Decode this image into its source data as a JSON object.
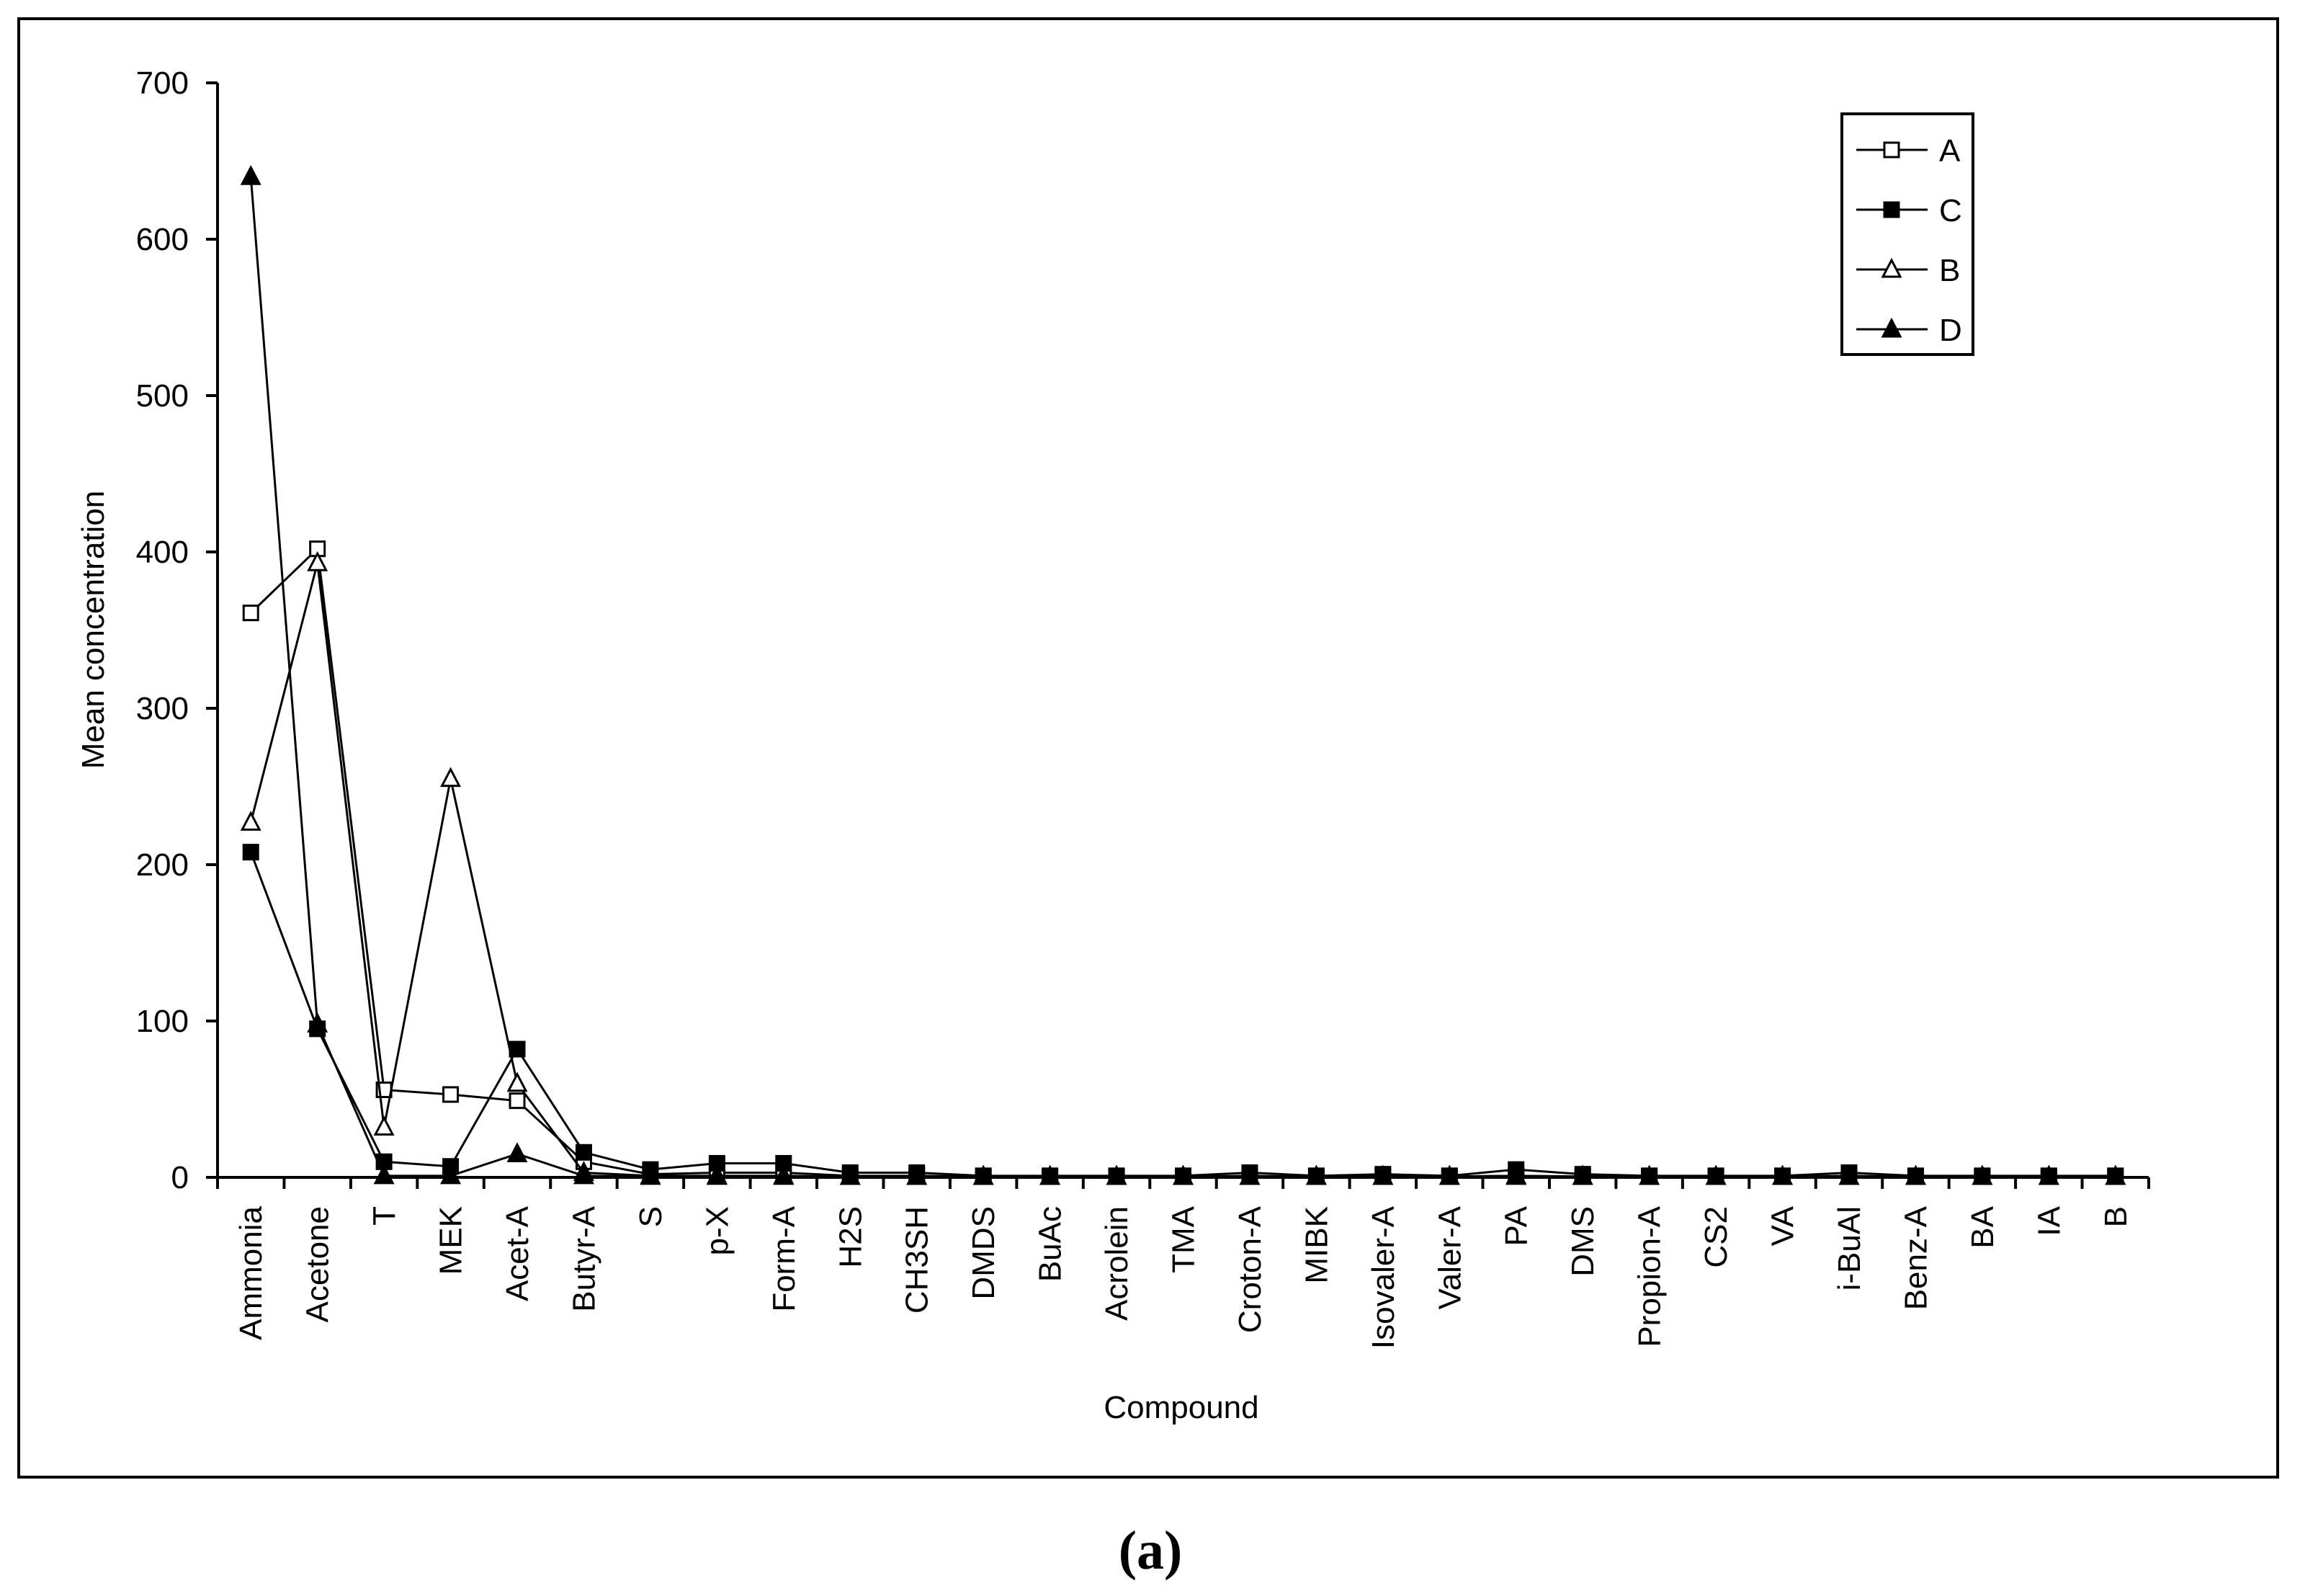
{
  "panel_label": "(a)",
  "chart_data": {
    "type": "line",
    "title": "",
    "xlabel": "Compound",
    "ylabel": "Mean concentration",
    "ylim": [
      0,
      700
    ],
    "yticks": [
      0,
      100,
      200,
      300,
      400,
      500,
      600,
      700
    ],
    "grid": false,
    "legend_position": "top-right",
    "categories": [
      "Ammonia",
      "Acetone",
      "T",
      "MEK",
      "Acet-A",
      "Butyr-A",
      "S",
      "p-X",
      "Form-A",
      "H2S",
      "CH3SH",
      "DMDS",
      "BuAc",
      "Acrolein",
      "TMA",
      "Croton-A",
      "MIBK",
      "Isovaler-A",
      "Valer-A",
      "PA",
      "DMS",
      "Propion-A",
      "CS2",
      "VA",
      "i-BuAl",
      "Benz-A",
      "BA",
      "IA",
      "B"
    ],
    "series": [
      {
        "name": "A",
        "marker": "square-open",
        "values": [
          361,
          402,
          56,
          53,
          49,
          10,
          2,
          3,
          3,
          1,
          1,
          0.5,
          0.5,
          0.5,
          0.5,
          1,
          0.5,
          1,
          0.5,
          1,
          0.5,
          0.5,
          0.5,
          0.5,
          1,
          0.5,
          0.5,
          0.5,
          0.5
        ]
      },
      {
        "name": "C",
        "marker": "square-filled",
        "values": [
          208,
          95,
          10,
          7,
          82,
          16,
          5,
          9,
          9,
          3,
          3,
          1,
          1,
          1,
          1,
          3,
          1,
          2,
          1,
          5,
          2,
          1,
          1,
          1,
          3,
          1,
          1,
          1,
          1
        ]
      },
      {
        "name": "B",
        "marker": "triangle-open",
        "values": [
          227,
          393,
          32,
          255,
          60,
          3,
          1,
          1,
          1,
          0.5,
          0.5,
          0.5,
          0.5,
          0.5,
          0.5,
          0.5,
          0.5,
          0.5,
          0.5,
          1,
          0.5,
          0.5,
          0.5,
          0.5,
          0.5,
          0.5,
          0.5,
          0.5,
          0.5
        ]
      },
      {
        "name": "D",
        "marker": "triangle-filled",
        "values": [
          640,
          98,
          1,
          1,
          15,
          1,
          0.5,
          0.5,
          0.5,
          0.5,
          0.5,
          0.5,
          0.5,
          0.5,
          0.5,
          0.5,
          0.5,
          0.5,
          0.5,
          0.5,
          0.5,
          0.5,
          0.5,
          0.5,
          0.5,
          0.5,
          0.5,
          0.5,
          0.5
        ]
      }
    ]
  }
}
